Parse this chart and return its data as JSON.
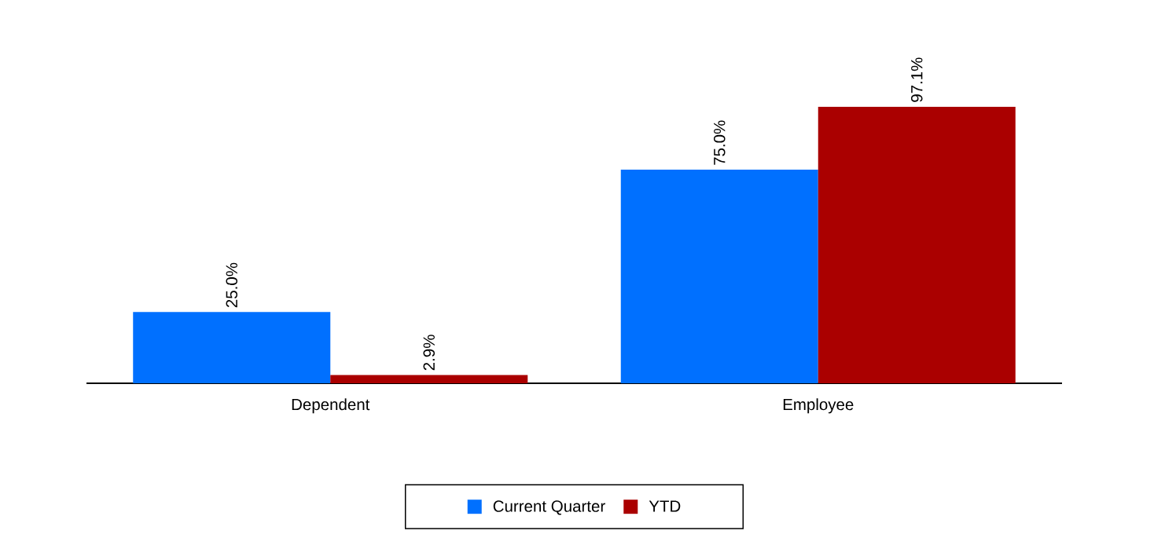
{
  "chart_data": {
    "type": "bar",
    "categories": [
      "Dependent",
      "Employee"
    ],
    "series": [
      {
        "name": "Current Quarter",
        "color": "#0070ff",
        "values": [
          25.0,
          75.0
        ],
        "value_labels": [
          "25.0%",
          "75.0%"
        ]
      },
      {
        "name": "YTD",
        "color": "#aa0000",
        "values": [
          2.9,
          97.1
        ],
        "value_labels": [
          "2.9%",
          "97.1%"
        ]
      }
    ],
    "legend": "bottom"
  }
}
